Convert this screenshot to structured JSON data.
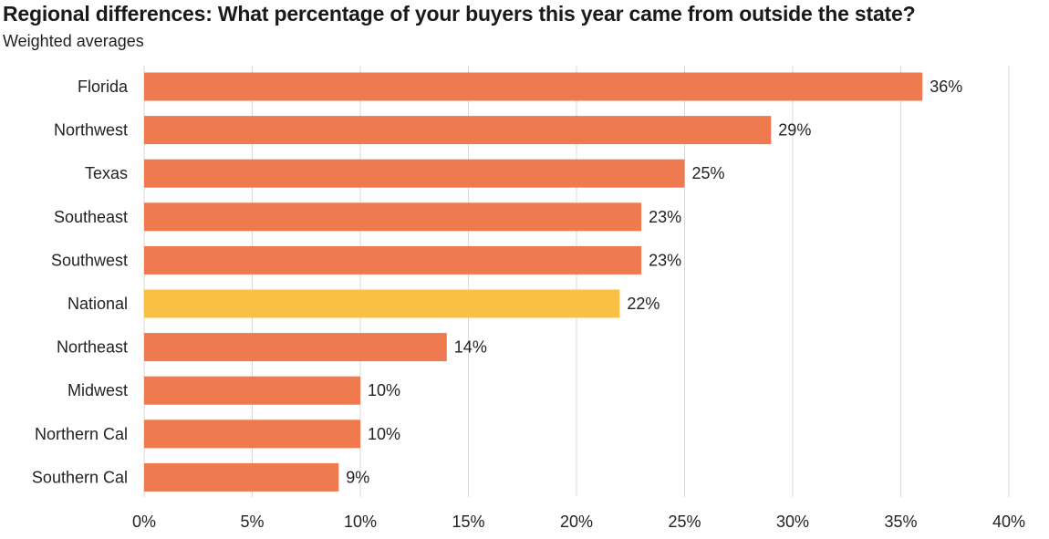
{
  "title": "Regional differences: What percentage of your buyers this year came from outside the state?",
  "subtitle": "Weighted averages",
  "colors": {
    "bar": "#F07A50",
    "highlight": "#F8C146",
    "grid": "#D9D9D9"
  },
  "chart_data": {
    "type": "bar",
    "orientation": "horizontal",
    "categories": [
      "Florida",
      "Northwest",
      "Texas",
      "Southeast",
      "Southwest",
      "National",
      "Northeast",
      "Midwest",
      "Northern Cal",
      "Southern Cal"
    ],
    "values": [
      36,
      29,
      25,
      23,
      23,
      22,
      14,
      10,
      10,
      9
    ],
    "value_labels": [
      "36%",
      "29%",
      "25%",
      "23%",
      "23%",
      "22%",
      "14%",
      "10%",
      "10%",
      "9%"
    ],
    "highlight": "National",
    "xlim": [
      0,
      40
    ],
    "xticks": [
      0,
      5,
      10,
      15,
      20,
      25,
      30,
      35,
      40
    ],
    "xtick_labels": [
      "0%",
      "5%",
      "10%",
      "15%",
      "20%",
      "25%",
      "30%",
      "35%",
      "40%"
    ],
    "grid": true,
    "legend": "none"
  }
}
